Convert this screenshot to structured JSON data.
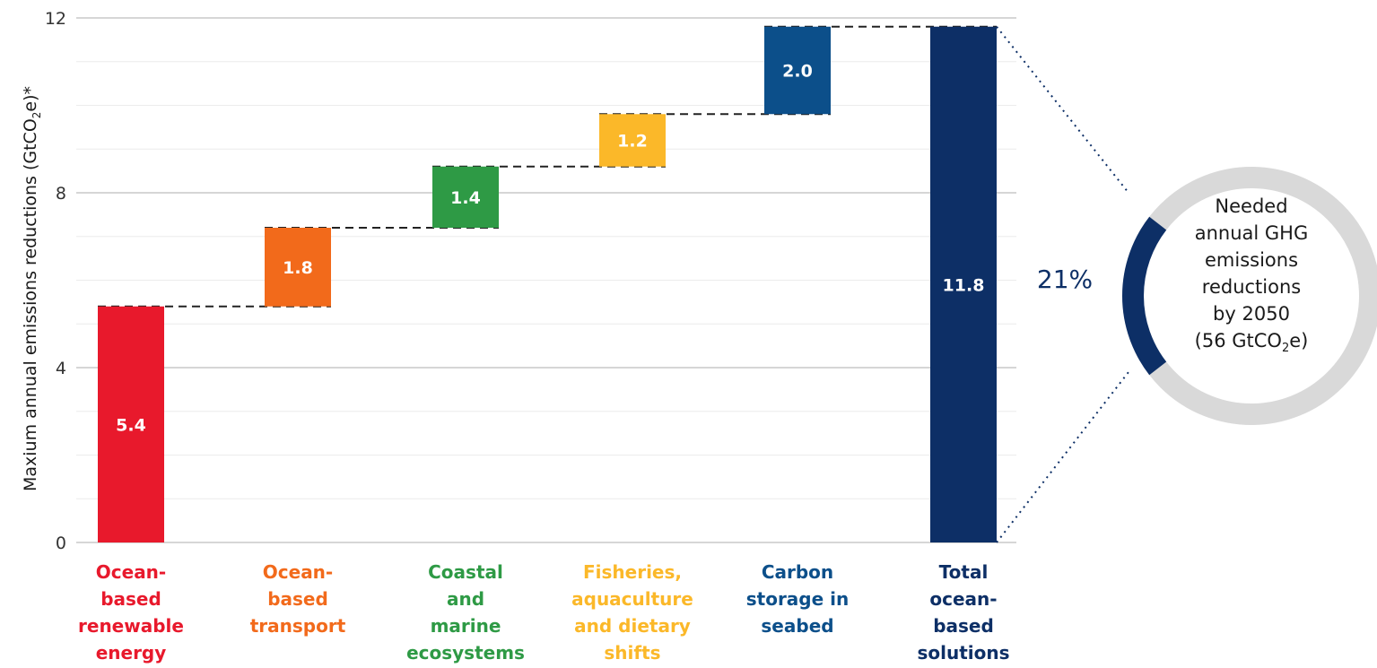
{
  "chart_data": {
    "type": "bar",
    "subtype": "waterfall",
    "ylabel": "Maxium annual emissions reductions (GtCO2e)*",
    "ylabel_parts": {
      "main": "Maxium annual emissions reductions (GtCO",
      "sub": "2",
      "end": "e)*"
    },
    "ylim": [
      0,
      12
    ],
    "yticks": [
      0,
      4,
      8,
      12
    ],
    "minor_gridlines": true,
    "categories": [
      {
        "lines": [
          "Ocean-",
          "based",
          "renewable",
          "energy"
        ],
        "value": 5.4,
        "label": "5.4",
        "color": "#e8192c",
        "start": 0
      },
      {
        "lines": [
          "Ocean-",
          "based",
          "transport"
        ],
        "value": 1.8,
        "label": "1.8",
        "color": "#f26a1b",
        "start": 5.4
      },
      {
        "lines": [
          "Coastal",
          "and",
          "marine",
          "ecosystems"
        ],
        "value": 1.4,
        "label": "1.4",
        "color": "#2e9a45",
        "start": 7.2
      },
      {
        "lines": [
          "Fisheries,",
          "aquaculture",
          "and dietary",
          "shifts"
        ],
        "value": 1.2,
        "label": "1.2",
        "color": "#fbb829",
        "start": 8.6
      },
      {
        "lines": [
          "Carbon",
          "storage in",
          "seabed"
        ],
        "value": 2.0,
        "label": "2.0",
        "color": "#0c4f8a",
        "start": 9.8
      },
      {
        "lines": [
          "Total",
          "ocean-",
          "based",
          "solutions"
        ],
        "value": 11.8,
        "label": "11.8",
        "color": "#0d2f66",
        "start": 0
      }
    ],
    "callout": {
      "percent_label": "21%",
      "percent_value": 21,
      "ring_text_lines": [
        "Needed",
        "annual GHG",
        "emissions",
        "reductions",
        "by 2050"
      ],
      "ring_last_line": {
        "main": "(56 GtCO",
        "sub": "2",
        "end": "e)"
      },
      "ring_color": "#d9d9d9",
      "highlight_color": "#0d2f66"
    }
  }
}
